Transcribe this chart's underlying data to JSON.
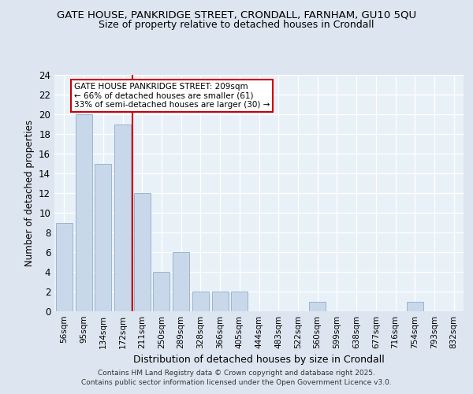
{
  "title1": "GATE HOUSE, PANKRIDGE STREET, CRONDALL, FARNHAM, GU10 5QU",
  "title2": "Size of property relative to detached houses in Crondall",
  "xlabel": "Distribution of detached houses by size in Crondall",
  "ylabel": "Number of detached properties",
  "bar_labels": [
    "56sqm",
    "95sqm",
    "134sqm",
    "172sqm",
    "211sqm",
    "250sqm",
    "289sqm",
    "328sqm",
    "366sqm",
    "405sqm",
    "444sqm",
    "483sqm",
    "522sqm",
    "560sqm",
    "599sqm",
    "638sqm",
    "677sqm",
    "716sqm",
    "754sqm",
    "793sqm",
    "832sqm"
  ],
  "bar_values": [
    9,
    20,
    15,
    19,
    12,
    4,
    6,
    2,
    2,
    2,
    0,
    0,
    0,
    1,
    0,
    0,
    0,
    0,
    1,
    0,
    0
  ],
  "bar_color": "#c8d8ea",
  "bar_edgecolor": "#9ab5cc",
  "red_line_x": 3.5,
  "annotation_title": "GATE HOUSE PANKRIDGE STREET: 209sqm",
  "annotation_line1": "← 66% of detached houses are smaller (61)",
  "annotation_line2": "33% of semi-detached houses are larger (30) →",
  "ylim": [
    0,
    24
  ],
  "yticks": [
    0,
    2,
    4,
    6,
    8,
    10,
    12,
    14,
    16,
    18,
    20,
    22,
    24
  ],
  "footer1": "Contains HM Land Registry data © Crown copyright and database right 2025.",
  "footer2": "Contains public sector information licensed under the Open Government Licence v3.0.",
  "bg_color": "#dde6f0",
  "plot_bg_color": "#e8f0f8"
}
